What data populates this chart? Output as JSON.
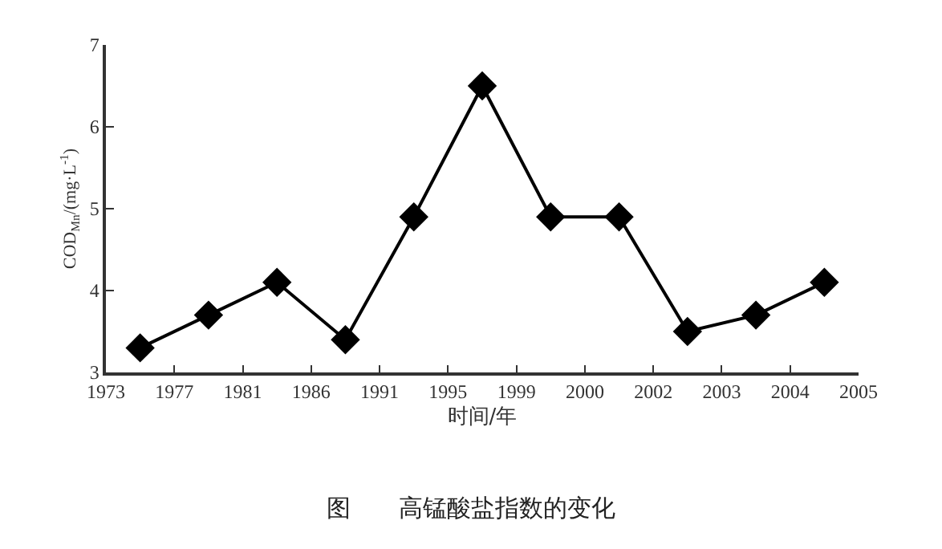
{
  "chart_data": {
    "type": "line",
    "title": "图　　高锰酸盐指数的变化",
    "xlabel": "时间/年",
    "ylabel": "COD$_{Mn}$/(mg·L$^{-1}$)",
    "categories": [
      "1973",
      null,
      "1977",
      null,
      "1981",
      null,
      "1986",
      null,
      "1991",
      null,
      "1995",
      null,
      "1999",
      null,
      "2000",
      null,
      "2002",
      null,
      "2003",
      null,
      "2004",
      null,
      "2005"
    ],
    "series": [
      {
        "color": "#000000",
        "values": [
          null,
          3.3,
          null,
          3.7,
          null,
          4.1,
          null,
          3.4,
          null,
          4.9,
          null,
          6.5,
          null,
          4.9,
          null,
          4.9,
          null,
          3.5,
          null,
          3.7,
          null,
          4.1,
          null
        ]
      }
    ],
    "ylim": [
      3,
      7
    ],
    "yticks": [
      3,
      4,
      5,
      6,
      7
    ],
    "grid": false,
    "marker": "diamond",
    "line_style": "solid"
  }
}
